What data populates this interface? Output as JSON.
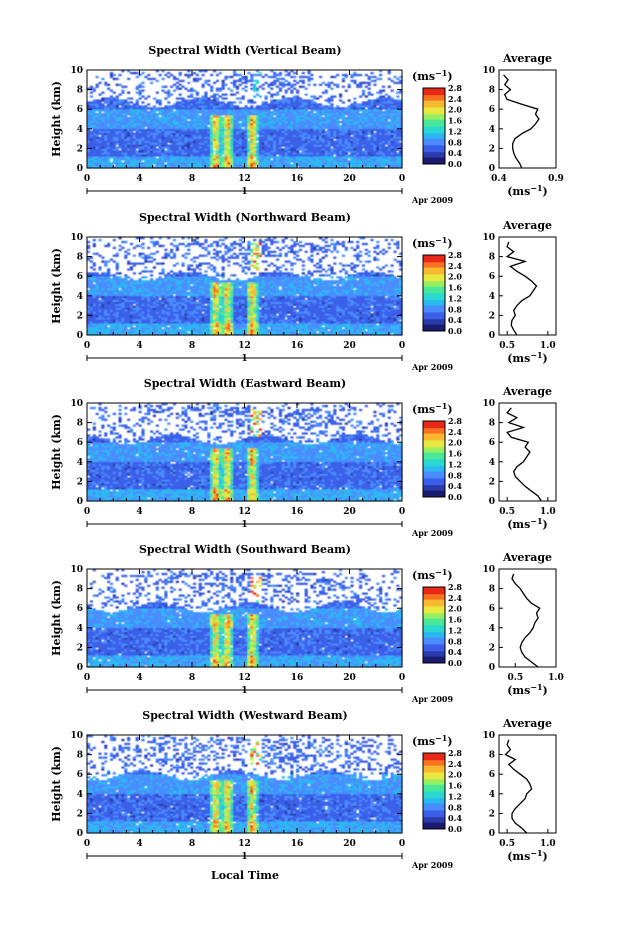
{
  "figure": {
    "colorbar_ticks": [
      "0.0",
      "0.4",
      "0.8",
      "1.2",
      "1.6",
      "2.0",
      "2.4",
      "2.8"
    ],
    "colorbar_unit": "(ms",
    "unit_exp": "−1",
    "average_title": "Average",
    "avg_unit": "(ms",
    "date_label": "Apr 2009",
    "day_label": "1",
    "xlabel_bottom": "Local Time",
    "ylabel": "Height (km)",
    "colors": [
      "#1a1a6e",
      "#2a3aa8",
      "#3a5ee8",
      "#4a8cff",
      "#2ab8f0",
      "#2ad8d0",
      "#48e898",
      "#98f060",
      "#e8e840",
      "#f8b830",
      "#f87020",
      "#e82818"
    ]
  },
  "chart_data": [
    {
      "type": "heatmap",
      "title": "Spectral Width (Vertical Beam)",
      "xlim": [
        0,
        24
      ],
      "ylim": [
        0,
        10
      ],
      "xticks": [
        "0",
        "4",
        "8",
        "12",
        "16",
        "20",
        "0"
      ],
      "yticks": [
        "0",
        "2",
        "4",
        "6",
        "8",
        "10"
      ],
      "clim": [
        0,
        2.8
      ],
      "profile": {
        "xlim": [
          0.4,
          0.9
        ],
        "xticks": [
          "0.4",
          "0.9"
        ],
        "heights": [
          0,
          0.5,
          1,
          1.5,
          2,
          2.5,
          3,
          3.5,
          4,
          4.5,
          5,
          5.5,
          6,
          6.5,
          7,
          7.5,
          8,
          8.5,
          9,
          9.5
        ],
        "values": [
          0.6,
          0.58,
          0.55,
          0.53,
          0.52,
          0.52,
          0.54,
          0.6,
          0.68,
          0.72,
          0.75,
          0.72,
          0.74,
          0.6,
          0.47,
          0.45,
          0.5,
          0.45,
          0.48,
          0.44
        ]
      }
    },
    {
      "type": "heatmap",
      "title": "Spectral Width (Northward Beam)",
      "xlim": [
        0,
        24
      ],
      "ylim": [
        0,
        10
      ],
      "xticks": [
        "0",
        "4",
        "8",
        "12",
        "16",
        "20",
        "0"
      ],
      "yticks": [
        "0",
        "2",
        "4",
        "6",
        "8",
        "10"
      ],
      "clim": [
        0,
        2.8
      ],
      "profile": {
        "xlim": [
          0.4,
          1.1
        ],
        "xticks": [
          "0.5",
          "1.0"
        ],
        "heights": [
          0,
          0.5,
          1,
          1.5,
          2,
          2.5,
          3,
          3.5,
          4,
          4.5,
          5,
          5.5,
          6,
          6.5,
          7,
          7.5,
          8,
          8.5,
          9,
          9.5
        ],
        "values": [
          0.62,
          0.58,
          0.55,
          0.56,
          0.6,
          0.58,
          0.62,
          0.68,
          0.78,
          0.82,
          0.86,
          0.8,
          0.72,
          0.62,
          0.54,
          0.72,
          0.5,
          0.58,
          0.5,
          0.52
        ]
      }
    },
    {
      "type": "heatmap",
      "title": "Spectral Width (Eastward Beam)",
      "xlim": [
        0,
        24
      ],
      "ylim": [
        0,
        10
      ],
      "xticks": [
        "0",
        "4",
        "8",
        "12",
        "16",
        "20",
        "0"
      ],
      "yticks": [
        "0",
        "2",
        "4",
        "6",
        "8",
        "10"
      ],
      "clim": [
        0,
        2.8
      ],
      "profile": {
        "xlim": [
          0.4,
          1.1
        ],
        "xticks": [
          "0.5",
          "1.0"
        ],
        "heights": [
          0,
          0.5,
          1,
          1.5,
          2,
          2.5,
          3,
          3.5,
          4,
          4.5,
          5,
          5.5,
          6,
          6.5,
          7,
          7.5,
          8,
          8.5,
          9,
          9.5
        ],
        "values": [
          0.92,
          0.88,
          0.8,
          0.72,
          0.66,
          0.6,
          0.58,
          0.62,
          0.7,
          0.74,
          0.78,
          0.72,
          0.76,
          0.55,
          0.5,
          0.7,
          0.52,
          0.62,
          0.5,
          0.55
        ]
      }
    },
    {
      "type": "heatmap",
      "title": "Spectral Width (Southward Beam)",
      "xlim": [
        0,
        24
      ],
      "ylim": [
        0,
        10
      ],
      "xticks": [
        "0",
        "4",
        "8",
        "12",
        "16",
        "20",
        "0"
      ],
      "yticks": [
        "0",
        "2",
        "4",
        "6",
        "8",
        "10"
      ],
      "clim": [
        0,
        2.8
      ],
      "profile": {
        "xlim": [
          0.3,
          1.0
        ],
        "xticks": [
          "0.5",
          "1.0"
        ],
        "heights": [
          0,
          0.5,
          1,
          1.5,
          2,
          2.5,
          3,
          3.5,
          4,
          4.5,
          5,
          5.5,
          6,
          6.5,
          7,
          7.5,
          8,
          8.5,
          9,
          9.5
        ],
        "values": [
          0.78,
          0.7,
          0.62,
          0.58,
          0.56,
          0.58,
          0.62,
          0.68,
          0.72,
          0.74,
          0.78,
          0.76,
          0.8,
          0.7,
          0.64,
          0.6,
          0.56,
          0.5,
          0.46,
          0.48
        ]
      }
    },
    {
      "type": "heatmap",
      "title": "Spectral Width (Westward Beam)",
      "xlim": [
        0,
        24
      ],
      "ylim": [
        0,
        10
      ],
      "xticks": [
        "0",
        "4",
        "8",
        "12",
        "16",
        "20",
        "0"
      ],
      "yticks": [
        "0",
        "2",
        "4",
        "6",
        "8",
        "10"
      ],
      "clim": [
        0,
        2.8
      ],
      "profile": {
        "xlim": [
          0.4,
          1.1
        ],
        "xticks": [
          "0.5",
          "1.0"
        ],
        "heights": [
          0,
          0.5,
          1,
          1.5,
          2,
          2.5,
          3,
          3.5,
          4,
          4.5,
          5,
          5.5,
          6,
          6.5,
          7,
          7.5,
          8,
          8.5,
          9,
          9.5
        ],
        "values": [
          0.74,
          0.68,
          0.6,
          0.56,
          0.56,
          0.6,
          0.66,
          0.72,
          0.74,
          0.8,
          0.78,
          0.74,
          0.66,
          0.58,
          0.52,
          0.6,
          0.48,
          0.54,
          0.5,
          0.52
        ]
      }
    }
  ]
}
